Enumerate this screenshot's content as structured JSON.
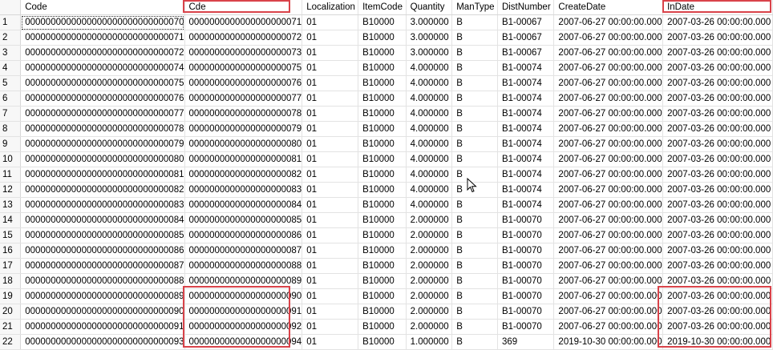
{
  "grid": {
    "columns": [
      "Code",
      "Cde",
      "Localization",
      "ItemCode",
      "Quantity",
      "ManType",
      "DistNumber",
      "CreateDate",
      "InDate"
    ],
    "rows": [
      [
        "1",
        "0000000000000000000000000000070",
        "0000000000000000000071",
        "01",
        "B10000",
        "3.000000",
        "B",
        "B1-00067",
        "2007-06-27 00:00:00.000",
        "2007-03-26 00:00:00.000"
      ],
      [
        "2",
        "0000000000000000000000000000071",
        "0000000000000000000072",
        "01",
        "B10000",
        "3.000000",
        "B",
        "B1-00067",
        "2007-06-27 00:00:00.000",
        "2007-03-26 00:00:00.000"
      ],
      [
        "3",
        "0000000000000000000000000000072",
        "0000000000000000000073",
        "01",
        "B10000",
        "3.000000",
        "B",
        "B1-00067",
        "2007-06-27 00:00:00.000",
        "2007-03-26 00:00:00.000"
      ],
      [
        "4",
        "0000000000000000000000000000074",
        "0000000000000000000075",
        "01",
        "B10000",
        "4.000000",
        "B",
        "B1-00074",
        "2007-06-27 00:00:00.000",
        "2007-03-26 00:00:00.000"
      ],
      [
        "5",
        "0000000000000000000000000000075",
        "0000000000000000000076",
        "01",
        "B10000",
        "4.000000",
        "B",
        "B1-00074",
        "2007-06-27 00:00:00.000",
        "2007-03-26 00:00:00.000"
      ],
      [
        "6",
        "0000000000000000000000000000076",
        "0000000000000000000077",
        "01",
        "B10000",
        "4.000000",
        "B",
        "B1-00074",
        "2007-06-27 00:00:00.000",
        "2007-03-26 00:00:00.000"
      ],
      [
        "7",
        "0000000000000000000000000000077",
        "0000000000000000000078",
        "01",
        "B10000",
        "4.000000",
        "B",
        "B1-00074",
        "2007-06-27 00:00:00.000",
        "2007-03-26 00:00:00.000"
      ],
      [
        "8",
        "0000000000000000000000000000078",
        "0000000000000000000079",
        "01",
        "B10000",
        "4.000000",
        "B",
        "B1-00074",
        "2007-06-27 00:00:00.000",
        "2007-03-26 00:00:00.000"
      ],
      [
        "9",
        "0000000000000000000000000000079",
        "0000000000000000000080",
        "01",
        "B10000",
        "4.000000",
        "B",
        "B1-00074",
        "2007-06-27 00:00:00.000",
        "2007-03-26 00:00:00.000"
      ],
      [
        "10",
        "0000000000000000000000000000080",
        "0000000000000000000081",
        "01",
        "B10000",
        "4.000000",
        "B",
        "B1-00074",
        "2007-06-27 00:00:00.000",
        "2007-03-26 00:00:00.000"
      ],
      [
        "11",
        "0000000000000000000000000000081",
        "0000000000000000000082",
        "01",
        "B10000",
        "4.000000",
        "B",
        "B1-00074",
        "2007-06-27 00:00:00.000",
        "2007-03-26 00:00:00.000"
      ],
      [
        "12",
        "0000000000000000000000000000082",
        "0000000000000000000083",
        "01",
        "B10000",
        "4.000000",
        "B",
        "B1-00074",
        "2007-06-27 00:00:00.000",
        "2007-03-26 00:00:00.000"
      ],
      [
        "13",
        "0000000000000000000000000000083",
        "0000000000000000000084",
        "01",
        "B10000",
        "4.000000",
        "B",
        "B1-00074",
        "2007-06-27 00:00:00.000",
        "2007-03-26 00:00:00.000"
      ],
      [
        "14",
        "0000000000000000000000000000084",
        "0000000000000000000085",
        "01",
        "B10000",
        "2.000000",
        "B",
        "B1-00070",
        "2007-06-27 00:00:00.000",
        "2007-03-26 00:00:00.000"
      ],
      [
        "15",
        "0000000000000000000000000000085",
        "0000000000000000000086",
        "01",
        "B10000",
        "2.000000",
        "B",
        "B1-00070",
        "2007-06-27 00:00:00.000",
        "2007-03-26 00:00:00.000"
      ],
      [
        "16",
        "0000000000000000000000000000086",
        "0000000000000000000087",
        "01",
        "B10000",
        "2.000000",
        "B",
        "B1-00070",
        "2007-06-27 00:00:00.000",
        "2007-03-26 00:00:00.000"
      ],
      [
        "17",
        "0000000000000000000000000000087",
        "0000000000000000000088",
        "01",
        "B10000",
        "2.000000",
        "B",
        "B1-00070",
        "2007-06-27 00:00:00.000",
        "2007-03-26 00:00:00.000"
      ],
      [
        "18",
        "0000000000000000000000000000088",
        "0000000000000000000089",
        "01",
        "B10000",
        "2.000000",
        "B",
        "B1-00070",
        "2007-06-27 00:00:00.000",
        "2007-03-26 00:00:00.000"
      ],
      [
        "19",
        "0000000000000000000000000000089",
        "0000000000000000000090",
        "01",
        "B10000",
        "2.000000",
        "B",
        "B1-00070",
        "2007-06-27 00:00:00.000",
        "2007-03-26 00:00:00.000"
      ],
      [
        "20",
        "0000000000000000000000000000090",
        "0000000000000000000091",
        "01",
        "B10000",
        "2.000000",
        "B",
        "B1-00070",
        "2007-06-27 00:00:00.000",
        "2007-03-26 00:00:00.000"
      ],
      [
        "21",
        "0000000000000000000000000000091",
        "0000000000000000000092",
        "01",
        "B10000",
        "2.000000",
        "B",
        "B1-00070",
        "2007-06-27 00:00:00.000",
        "2007-03-26 00:00:00.000"
      ],
      [
        "22",
        "0000000000000000000000000000093",
        "0000000000000000000094",
        "01",
        "B10000",
        "1.000000",
        "B",
        "369",
        "2019-10-30 00:00:00.000",
        "2019-10-30 00:00:00.000"
      ]
    ]
  },
  "annotation_color": "#d9434a",
  "icons": {
    "pointer": "mouse-cursor-icon"
  }
}
